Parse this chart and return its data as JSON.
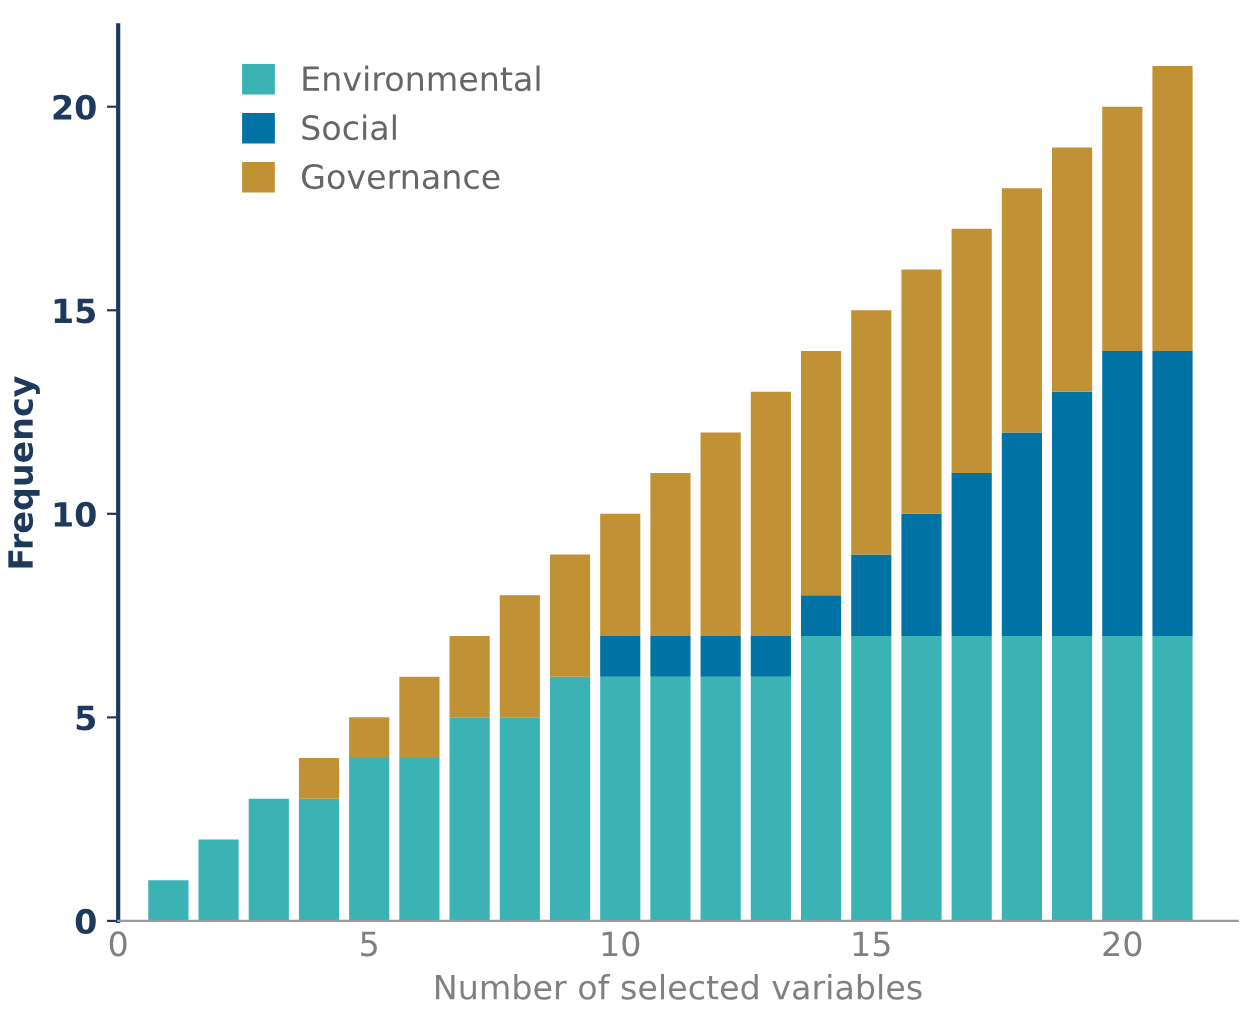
{
  "chart_data": {
    "type": "bar",
    "stacked": true,
    "xlabel": "Number of selected variables",
    "ylabel": "Frequency",
    "x": [
      1,
      2,
      3,
      4,
      5,
      6,
      7,
      8,
      9,
      10,
      11,
      12,
      13,
      14,
      15,
      16,
      17,
      18,
      19,
      20,
      21
    ],
    "series": [
      {
        "name": "Environmental",
        "color": "#3bb3b5",
        "values": [
          1,
          2,
          3,
          3,
          4,
          4,
          5,
          5,
          6,
          6,
          6,
          6,
          6,
          7,
          7,
          7,
          7,
          7,
          7,
          7,
          7
        ]
      },
      {
        "name": "Social",
        "color": "#0072a3",
        "values": [
          0,
          0,
          0,
          0,
          0,
          0,
          0,
          0,
          0,
          1,
          1,
          1,
          1,
          1,
          2,
          3,
          4,
          5,
          6,
          7,
          7
        ]
      },
      {
        "name": "Governance",
        "color": "#c19235",
        "values": [
          0,
          0,
          0,
          1,
          1,
          2,
          2,
          3,
          3,
          3,
          4,
          5,
          6,
          6,
          6,
          6,
          6,
          6,
          6,
          6,
          7
        ]
      }
    ],
    "xlim": [
      0,
      22.3
    ],
    "xticks": [
      0,
      5,
      10,
      15,
      20
    ],
    "ylim": [
      0,
      22
    ],
    "yticks": [
      0,
      5,
      10,
      15,
      20
    ],
    "grid": false,
    "legend": "top left"
  }
}
